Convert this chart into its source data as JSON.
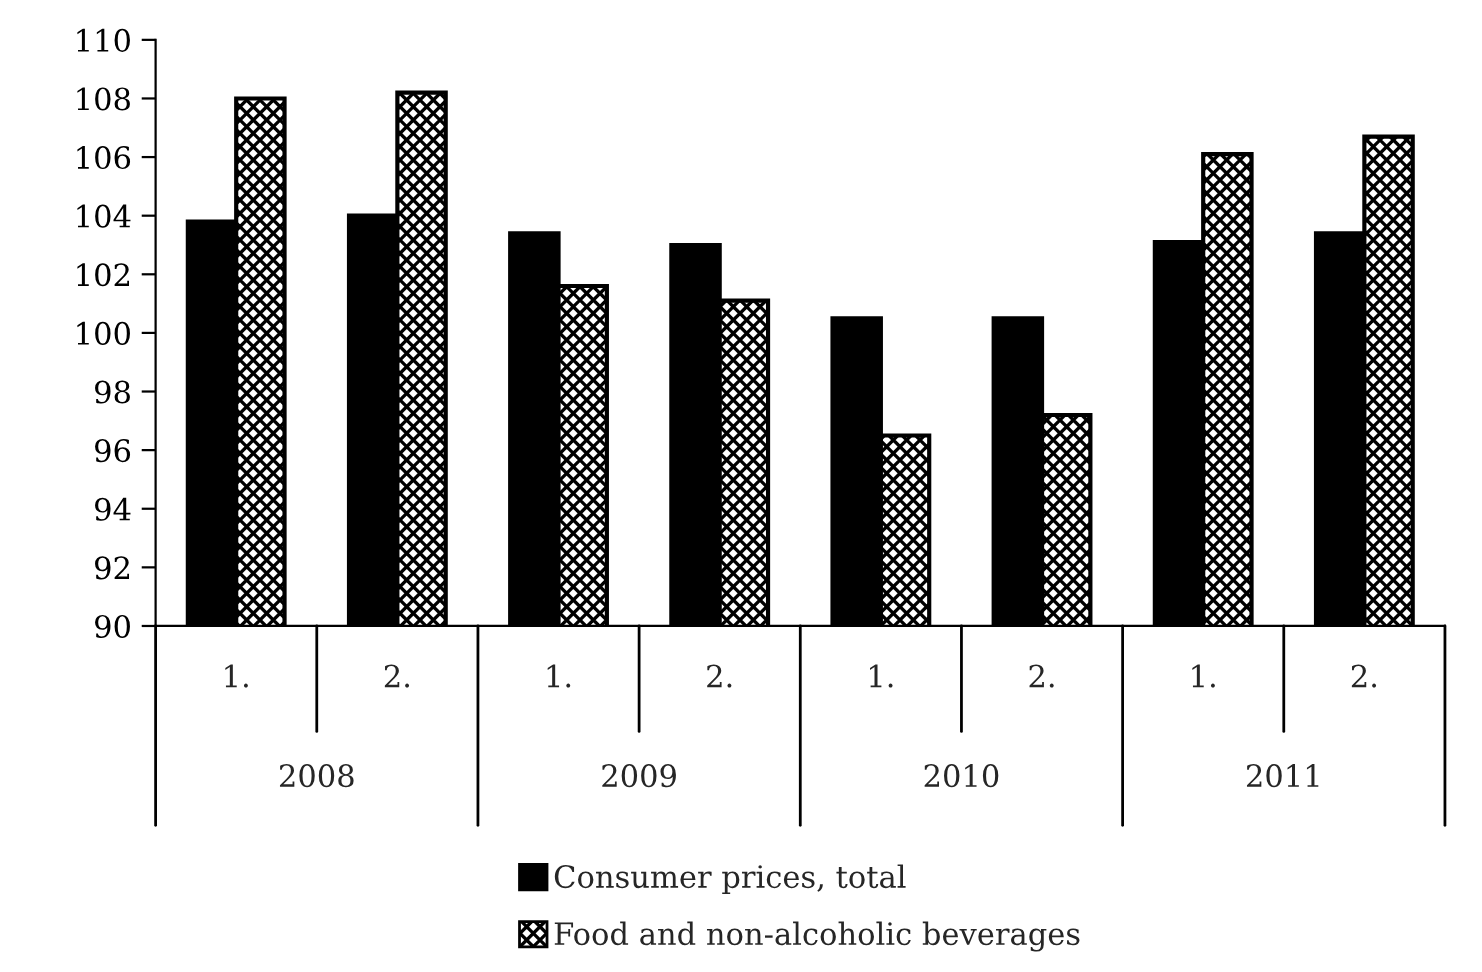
{
  "chart_data": {
    "type": "bar",
    "categories": [
      "1.",
      "2.",
      "1.",
      "2.",
      "1.",
      "2.",
      "1.",
      "2."
    ],
    "annotations": [
      "2008",
      "2009",
      "2010",
      "2011"
    ],
    "series": [
      {
        "name": "Consumer prices, total",
        "color": "#000000",
        "values": [
          103.8,
          104.0,
          103.4,
          103.0,
          100.5,
          100.5,
          103.1,
          103.4
        ]
      },
      {
        "name": "Food and non-alcoholic beverages",
        "color": "#000000",
        "values": [
          108.0,
          108.2,
          101.6,
          101.1,
          96.5,
          97.2,
          106.1,
          106.7
        ]
      }
    ],
    "ylim": [
      90,
      110
    ],
    "yticks": [
      90,
      92,
      94,
      96,
      98,
      100,
      102,
      104,
      106,
      108,
      110
    ],
    "grid": false,
    "legend": "bottom"
  }
}
